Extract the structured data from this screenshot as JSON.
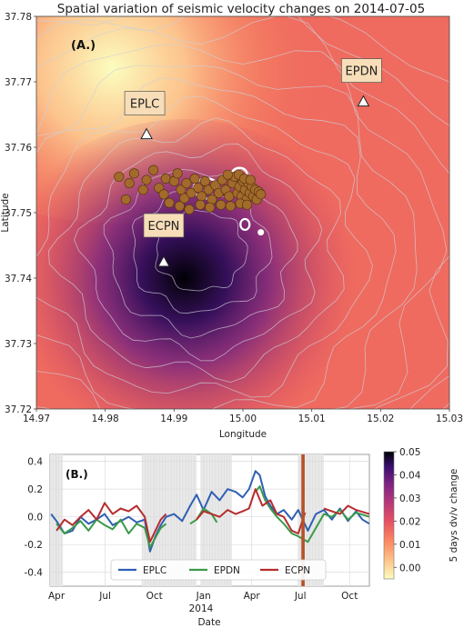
{
  "title": "Spatial variation of seismic velocity changes on 2014-07-05",
  "chart_data": [
    {
      "panel": "A",
      "type": "heatmap",
      "panel_label": "(A.)",
      "xlabel": "Longitude",
      "ylabel": "Latitude",
      "xlim": [
        14.97,
        15.03
      ],
      "ylim": [
        37.72,
        37.78
      ],
      "x_ticks": [
        "14.97",
        "14.98",
        "14.99",
        "15.00",
        "15.01",
        "15.02",
        "15.03"
      ],
      "y_ticks": [
        "37.72",
        "37.73",
        "37.74",
        "37.75",
        "37.76",
        "37.77",
        "37.78"
      ],
      "colormap": "magma_r",
      "stations": [
        {
          "name": "EPLC",
          "lon": 14.986,
          "lat": 37.762,
          "marker_color": "#ffffff"
        },
        {
          "name": "EPDN",
          "lon": 15.0175,
          "lat": 37.767,
          "marker_color": "#ffffff"
        },
        {
          "name": "ECPN",
          "lon": 14.9885,
          "lat": 37.7425,
          "marker_color": "#ffffff"
        }
      ],
      "velocity_minimum": {
        "lon": 14.9915,
        "lat": 37.74,
        "value": 0.05
      },
      "velocity_maximum": {
        "lon": 14.981,
        "lat": 37.772,
        "value": 0.0
      },
      "events": [
        [
          14.982,
          37.7555
        ],
        [
          14.9835,
          37.7545
        ],
        [
          14.9842,
          37.756
        ],
        [
          14.9855,
          37.7535
        ],
        [
          14.983,
          37.752
        ],
        [
          14.986,
          37.755
        ],
        [
          14.987,
          37.7565
        ],
        [
          14.9878,
          37.7538
        ],
        [
          14.9885,
          37.7528
        ],
        [
          14.9888,
          37.7552
        ],
        [
          14.9893,
          37.7515
        ],
        [
          14.99,
          37.7548
        ],
        [
          14.9905,
          37.756
        ],
        [
          14.991,
          37.7535
        ],
        [
          14.9915,
          37.7522
        ],
        [
          14.9918,
          37.7545
        ],
        [
          14.9925,
          37.753
        ],
        [
          14.993,
          37.7552
        ],
        [
          14.9935,
          37.7538
        ],
        [
          14.994,
          37.7525
        ],
        [
          14.9945,
          37.7548
        ],
        [
          14.995,
          37.7535
        ],
        [
          14.9955,
          37.752
        ],
        [
          14.996,
          37.7542
        ],
        [
          14.9965,
          37.753
        ],
        [
          14.997,
          37.755
        ],
        [
          14.9975,
          37.7535
        ],
        [
          14.998,
          37.7525
        ],
        [
          14.9985,
          37.7545
        ],
        [
          14.9988,
          37.7555
        ],
        [
          14.9992,
          37.753
        ],
        [
          14.9995,
          37.754
        ],
        [
          14.9998,
          37.7525
        ],
        [
          15.0,
          37.7548
        ],
        [
          15.0003,
          37.7535
        ],
        [
          15.0005,
          37.752
        ],
        [
          15.0008,
          37.7545
        ],
        [
          15.001,
          37.753
        ],
        [
          15.0013,
          37.754
        ],
        [
          15.0015,
          37.7525
        ],
        [
          15.0018,
          37.7535
        ],
        [
          15.002,
          37.752
        ],
        [
          15.0023,
          37.7532
        ],
        [
          15.0026,
          37.7528
        ],
        [
          14.9968,
          37.7512
        ],
        [
          14.9982,
          37.751
        ],
        [
          14.9996,
          37.7514
        ],
        [
          15.0006,
          37.7512
        ],
        [
          14.9952,
          37.7508
        ],
        [
          14.9938,
          37.7512
        ],
        [
          14.9922,
          37.7505
        ],
        [
          14.9908,
          37.751
        ],
        [
          14.9994,
          37.7558
        ],
        [
          15.0002,
          37.7552
        ],
        [
          14.9978,
          37.7558
        ],
        [
          15.0011,
          37.755
        ]
      ],
      "event_color": "#a36b2b",
      "contour_color": "#cfcfd8"
    },
    {
      "panel": "B",
      "type": "line",
      "panel_label": "(B.)",
      "xlabel": "Date",
      "ylabel": "",
      "ylim": [
        -0.5,
        0.45
      ],
      "y_ticks": [
        "0.4",
        "0.2",
        "0.0",
        "-0.2",
        "-0.4"
      ],
      "x_ticks": [
        "Apr",
        "Jul",
        "Oct",
        "Jan",
        "Apr",
        "Jul",
        "Oct"
      ],
      "x_year_label": "2014",
      "xlim_days": [
        -12,
        585
      ],
      "tick_days": [
        0,
        91,
        183,
        275,
        365,
        456,
        548
      ],
      "marker_day": 461,
      "marker_color": "#b5522a",
      "gaps": [
        [
          -12,
          12
        ],
        [
          160,
          262
        ],
        [
          270,
          328
        ],
        [
          452,
          500
        ]
      ],
      "series": [
        {
          "name": "EPLC",
          "color": "#2f5fb3",
          "x": [
            -10,
            0,
            15,
            30,
            45,
            60,
            75,
            90,
            105,
            120,
            135,
            150,
            165,
            175,
            185,
            195,
            205,
            220,
            235,
            250,
            262,
            275,
            290,
            305,
            320,
            335,
            348,
            360,
            372,
            380,
            390,
            400,
            412,
            425,
            440,
            452,
            470,
            485,
            500,
            515,
            530,
            545,
            560,
            572,
            585
          ],
          "y": [
            0.02,
            -0.03,
            -0.12,
            -0.1,
            0.0,
            -0.05,
            -0.02,
            0.02,
            -0.06,
            -0.03,
            0.0,
            -0.04,
            -0.02,
            -0.25,
            -0.14,
            -0.06,
            0.0,
            0.02,
            -0.03,
            0.08,
            0.16,
            0.05,
            0.18,
            0.12,
            0.2,
            0.18,
            0.14,
            0.2,
            0.33,
            0.3,
            0.15,
            0.08,
            0.02,
            0.05,
            -0.02,
            0.05,
            -0.1,
            0.02,
            0.05,
            -0.02,
            0.06,
            -0.03,
            0.04,
            -0.02,
            -0.05
          ]
        },
        {
          "name": "EPDN",
          "color": "#3a9a4a",
          "x": [
            0,
            15,
            30,
            45,
            60,
            75,
            90,
            105,
            120,
            135,
            150,
            165,
            175,
            185,
            195,
            205,
            250,
            262,
            275,
            290,
            300,
            372,
            380,
            390,
            400,
            412,
            425,
            440,
            452,
            470,
            500,
            515,
            530,
            545,
            560,
            585
          ],
          "y": [
            -0.05,
            -0.12,
            -0.08,
            -0.03,
            -0.1,
            -0.02,
            -0.06,
            -0.09,
            -0.02,
            -0.12,
            -0.05,
            -0.08,
            -0.22,
            -0.15,
            -0.08,
            -0.05,
            -0.05,
            -0.02,
            0.06,
            0.02,
            -0.04,
            0.18,
            0.22,
            0.12,
            0.06,
            0.0,
            -0.05,
            -0.12,
            -0.14,
            -0.18,
            0.02,
            0.0,
            0.05,
            -0.02,
            0.03,
            0.0
          ]
        },
        {
          "name": "ECPN",
          "color": "#b52d2d",
          "x": [
            0,
            15,
            30,
            45,
            60,
            75,
            90,
            105,
            120,
            135,
            150,
            165,
            175,
            185,
            195,
            205,
            262,
            275,
            290,
            305,
            320,
            335,
            348,
            360,
            372,
            385,
            400,
            412,
            425,
            440,
            452,
            465,
            500,
            515,
            530,
            545,
            560,
            585
          ],
          "y": [
            -0.1,
            -0.02,
            -0.06,
            0.0,
            0.05,
            -0.02,
            0.1,
            0.02,
            0.06,
            0.04,
            0.08,
            0.0,
            -0.18,
            -0.1,
            -0.02,
            0.02,
            -0.02,
            0.04,
            0.02,
            0.0,
            0.05,
            0.02,
            0.04,
            0.06,
            0.2,
            0.08,
            0.12,
            0.02,
            0.0,
            -0.1,
            -0.12,
            0.03,
            0.06,
            0.04,
            0.02,
            0.08,
            0.05,
            0.02
          ]
        }
      ]
    }
  ],
  "colorbar": {
    "label": "5 days dv/v change",
    "ticks": [
      "0.05",
      "0.04",
      "0.03",
      "0.02",
      "0.01",
      "0.00"
    ],
    "range": [
      -0.005,
      0.05
    ],
    "colormap": "magma_r"
  }
}
